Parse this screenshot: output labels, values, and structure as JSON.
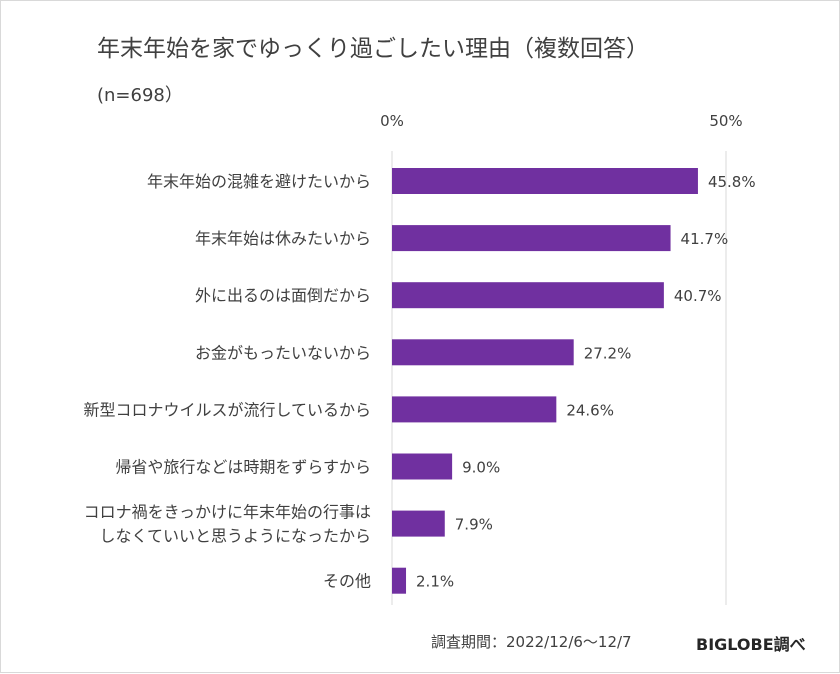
{
  "chart_data": {
    "type": "bar",
    "orientation": "horizontal",
    "title": "年末年始を家でゆっくり過ごしたい理由（複数回答）",
    "subtitle": "(n=698）",
    "categories": [
      [
        "年末年始の混雑を避けたいから"
      ],
      [
        "年末年始は休みたいから"
      ],
      [
        "外に出るのは面倒だから"
      ],
      [
        "お金がもったいないから"
      ],
      [
        "新型コロナウイルスが流行しているから"
      ],
      [
        "帰省や旅行などは時期をずらすから"
      ],
      [
        "コロナ禍をきっかけに年末年始の行事は",
        "しなくていいと思うようになったから"
      ],
      [
        "その他"
      ]
    ],
    "values": [
      45.8,
      41.7,
      40.7,
      27.2,
      24.6,
      9.0,
      7.9,
      2.1
    ],
    "value_labels": [
      "45.8%",
      "41.7%",
      "40.7%",
      "27.2%",
      "24.6%",
      "9.0%",
      "7.9%",
      "2.1%"
    ],
    "xlim": [
      0,
      50
    ],
    "xticks": [
      0,
      50
    ],
    "xtick_labels": [
      "0%",
      "50%"
    ],
    "grid": true,
    "bar_color": "#7030a0"
  },
  "footer": {
    "period": "調査期間：2022/12/6～12/7",
    "brand": "BIGLOBE調べ"
  },
  "colors": {
    "text": "#404040",
    "gridline": "#d9d9d9"
  }
}
